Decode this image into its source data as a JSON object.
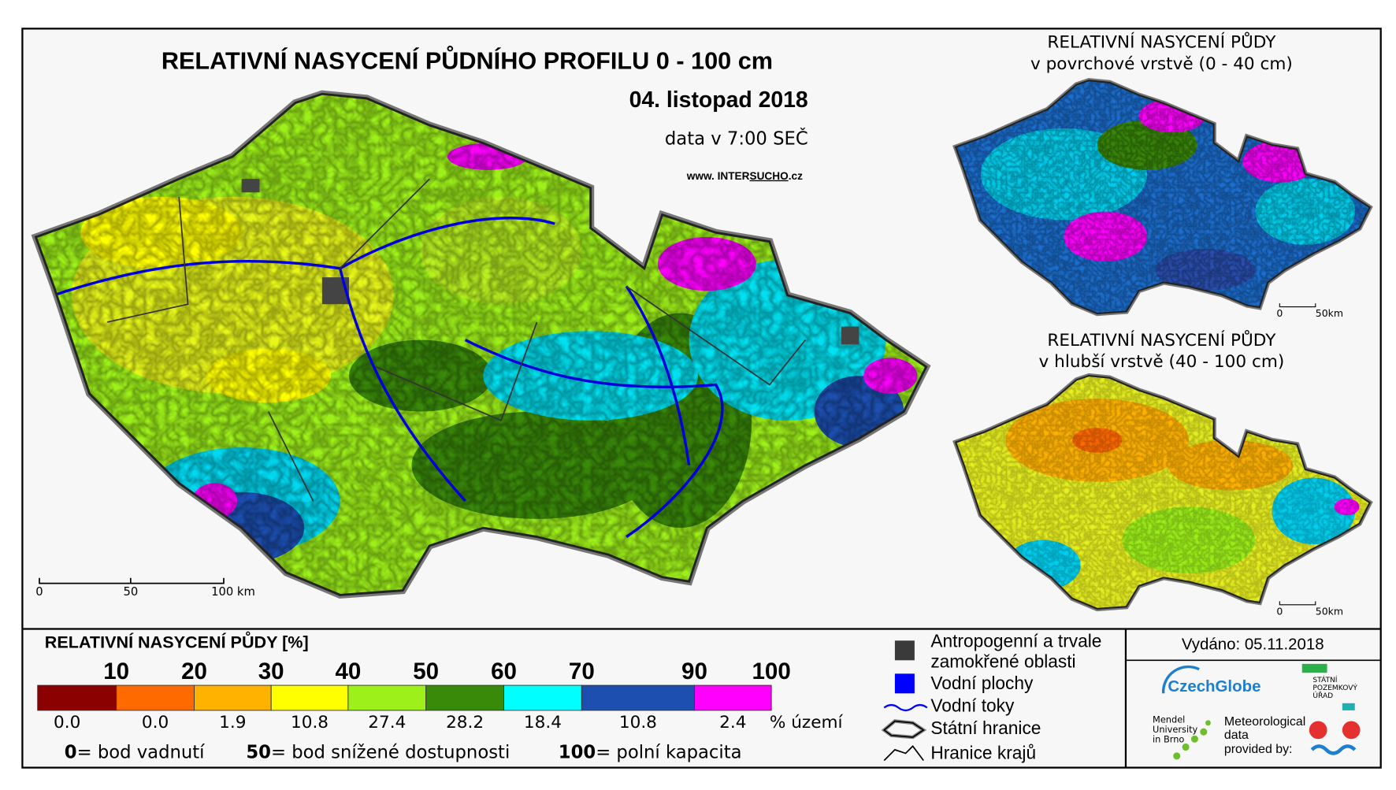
{
  "title": "RELATIVNÍ NASYCENÍ PŮDNÍHO PROFILU 0 - 100 cm",
  "date": "04. listopad 2018",
  "data_time": "data v 7:00 SEČ",
  "website": {
    "prefix": "www. INTER",
    "highlight": "SUCHO",
    "suffix": ".cz"
  },
  "main_scale": [
    "0",
    "50",
    "100 km"
  ],
  "inset_top": {
    "title_line1": "RELATIVNÍ NASYCENÍ PŮDY",
    "title_line2": "v povrchové vrstvě (0 - 40 cm)",
    "scale": [
      "0",
      "50km"
    ]
  },
  "inset_bottom": {
    "title_line1": "RELATIVNÍ NASYCENÍ PŮDY",
    "title_line2": "v hlubší vrstvě (40 - 100 cm)",
    "scale": [
      "0",
      "50km"
    ]
  },
  "legend": {
    "title": "RELATIVNÍ NASYCENÍ PŮDY [%]",
    "thresholds": [
      "10",
      "20",
      "30",
      "40",
      "50",
      "60",
      "70",
      "90",
      "100"
    ],
    "colors": [
      "#8b0000",
      "#ff6a00",
      "#ffb300",
      "#ffff00",
      "#9ef01a",
      "#3a8a0a",
      "#00ffff",
      "#1c4fb0",
      "#ff00ff"
    ],
    "shares": [
      "0.0",
      "0.0",
      "1.9",
      "10.8",
      "27.4",
      "28.2",
      "18.4",
      "10.8",
      "2.4"
    ],
    "unit": "% území",
    "notes": [
      {
        "key": "0",
        "text": "= bod vadnutí"
      },
      {
        "key": "50",
        "text": "= bod snížené dostupnosti"
      },
      {
        "key": "100",
        "text": "= polní kapacita"
      }
    ]
  },
  "layers": [
    "Antropogenní a trvale",
    "zamokřené oblasti",
    "Vodní plochy",
    "Vodní toky",
    "Státní hranice",
    "Hranice krajů"
  ],
  "issued": "Vydáno: 05.11.2018",
  "logos": {
    "czechglobe": "CzechGlobe",
    "mendel": [
      "Mendel",
      "University",
      "in Brno"
    ],
    "meteo": [
      "Meteorological",
      "data",
      "provided by:"
    ],
    "spu": [
      "STÁTNÍ",
      "POZEMKOVÝ",
      "ÚŘAD"
    ]
  }
}
